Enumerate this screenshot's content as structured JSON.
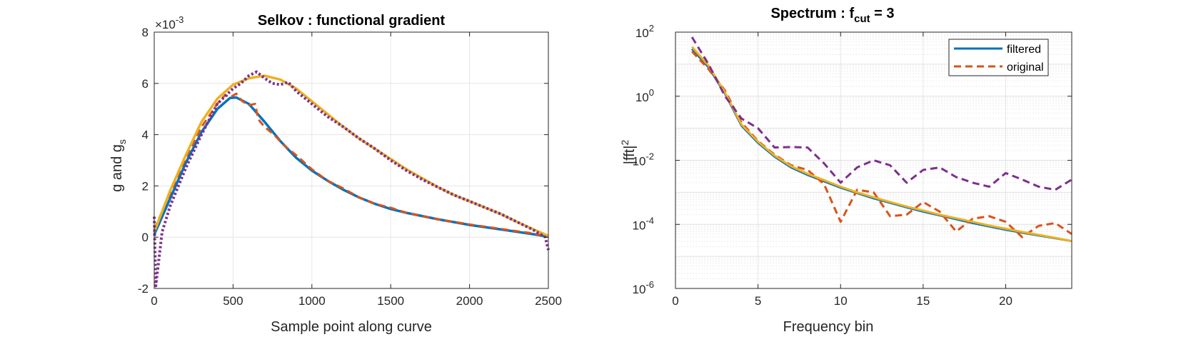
{
  "chart_data": [
    {
      "type": "line",
      "title": "Selkov : functional gradient",
      "xlabel": "Sample point along curve",
      "ylabel_main": "g and g",
      "ylabel_sub": "s",
      "y_exponent_prefix": "×10",
      "y_exponent": "-3",
      "xlim": [
        0,
        2500
      ],
      "ylim": [
        -2,
        8
      ],
      "xticks": [
        0,
        500,
        1000,
        1500,
        2000,
        2500
      ],
      "yticks": [
        -2,
        0,
        2,
        4,
        6,
        8
      ],
      "xtick_labels": [
        "0",
        "500",
        "1000",
        "1500",
        "2000",
        "2500"
      ],
      "ytick_labels": [
        "-2",
        "0",
        "2",
        "4",
        "6",
        "8"
      ],
      "grid": true,
      "series": [
        {
          "color": "#0072BD",
          "style": "solid",
          "points": [
            [
              0,
              0.1
            ],
            [
              100,
              1.5
            ],
            [
              200,
              2.9
            ],
            [
              300,
              4.1
            ],
            [
              400,
              5.0
            ],
            [
              480,
              5.43
            ],
            [
              520,
              5.45
            ],
            [
              600,
              5.2
            ],
            [
              700,
              4.5
            ],
            [
              800,
              3.75
            ],
            [
              900,
              3.1
            ],
            [
              1000,
              2.6
            ],
            [
              1100,
              2.2
            ],
            [
              1200,
              1.85
            ],
            [
              1300,
              1.55
            ],
            [
              1400,
              1.3
            ],
            [
              1500,
              1.1
            ],
            [
              1600,
              0.95
            ],
            [
              1800,
              0.7
            ],
            [
              2000,
              0.48
            ],
            [
              2200,
              0.3
            ],
            [
              2400,
              0.12
            ],
            [
              2500,
              0.02
            ]
          ]
        },
        {
          "color": "#D95319",
          "style": "dashed",
          "points": [
            [
              0,
              0.3
            ],
            [
              100,
              1.7
            ],
            [
              200,
              3.1
            ],
            [
              300,
              4.3
            ],
            [
              400,
              5.2
            ],
            [
              450,
              5.55
            ],
            [
              480,
              5.45
            ],
            [
              520,
              5.6
            ],
            [
              560,
              5.3
            ],
            [
              600,
              5.15
            ],
            [
              640,
              5.2
            ],
            [
              660,
              4.6
            ],
            [
              700,
              4.3
            ],
            [
              760,
              4.0
            ],
            [
              820,
              3.6
            ],
            [
              900,
              3.2
            ],
            [
              1000,
              2.65
            ],
            [
              1100,
              2.2
            ],
            [
              1200,
              1.9
            ],
            [
              1300,
              1.55
            ],
            [
              1400,
              1.3
            ],
            [
              1500,
              1.15
            ],
            [
              1600,
              0.95
            ],
            [
              1800,
              0.7
            ],
            [
              2000,
              0.5
            ],
            [
              2200,
              0.32
            ],
            [
              2400,
              0.15
            ],
            [
              2500,
              0.02
            ]
          ]
        },
        {
          "color": "#EDB120",
          "style": "solid",
          "points": [
            [
              0,
              0.2
            ],
            [
              100,
              1.8
            ],
            [
              200,
              3.2
            ],
            [
              300,
              4.5
            ],
            [
              400,
              5.4
            ],
            [
              500,
              5.95
            ],
            [
              600,
              6.2
            ],
            [
              700,
              6.3
            ],
            [
              800,
              6.15
            ],
            [
              900,
              5.8
            ],
            [
              1000,
              5.3
            ],
            [
              1100,
              4.8
            ],
            [
              1200,
              4.3
            ],
            [
              1300,
              3.85
            ],
            [
              1400,
              3.45
            ],
            [
              1500,
              3.05
            ],
            [
              1600,
              2.65
            ],
            [
              1700,
              2.3
            ],
            [
              1800,
              1.95
            ],
            [
              1900,
              1.65
            ],
            [
              2000,
              1.4
            ],
            [
              2100,
              1.15
            ],
            [
              2200,
              0.9
            ],
            [
              2300,
              0.6
            ],
            [
              2400,
              0.32
            ],
            [
              2500,
              0.05
            ]
          ]
        },
        {
          "color": "#7E2F8E",
          "style": "dotted",
          "points": [
            [
              0,
              0.8
            ],
            [
              10,
              -1.9
            ],
            [
              50,
              0.2
            ],
            [
              100,
              1.2
            ],
            [
              200,
              2.7
            ],
            [
              300,
              4.0
            ],
            [
              400,
              5.2
            ],
            [
              500,
              5.8
            ],
            [
              550,
              6.0
            ],
            [
              600,
              6.3
            ],
            [
              650,
              6.45
            ],
            [
              700,
              6.2
            ],
            [
              750,
              6.0
            ],
            [
              800,
              5.95
            ],
            [
              850,
              6.05
            ],
            [
              900,
              5.7
            ],
            [
              1000,
              5.2
            ],
            [
              1100,
              4.7
            ],
            [
              1200,
              4.3
            ],
            [
              1300,
              3.85
            ],
            [
              1400,
              3.45
            ],
            [
              1500,
              3.0
            ],
            [
              1600,
              2.6
            ],
            [
              1700,
              2.25
            ],
            [
              1800,
              1.95
            ],
            [
              1900,
              1.65
            ],
            [
              2000,
              1.4
            ],
            [
              2100,
              1.15
            ],
            [
              2200,
              0.9
            ],
            [
              2300,
              0.6
            ],
            [
              2400,
              0.3
            ],
            [
              2480,
              0.0
            ],
            [
              2500,
              -0.5
            ]
          ]
        }
      ]
    },
    {
      "type": "line",
      "title_main": "Spectrum : f",
      "title_sub": "cut",
      "title_tail": " = 3",
      "xlabel": "Frequency bin",
      "ylabel_main": "|fft|",
      "ylabel_sup": "2",
      "xlim": [
        0,
        24
      ],
      "ylim_log10": [
        -6,
        2
      ],
      "yscale": "log",
      "xticks": [
        0,
        5,
        10,
        15,
        20
      ],
      "xtick_labels": [
        "0",
        "5",
        "10",
        "15",
        "20"
      ],
      "ytick_base": "10",
      "ytick_exponents": [
        "-6",
        "-4",
        "-2",
        "0",
        "2"
      ],
      "grid": true,
      "legend_position": "top-right",
      "legend": [
        {
          "label": "filtered",
          "color": "#0072BD",
          "style": "solid"
        },
        {
          "label": "original",
          "color": "#D95319",
          "style": "dashed"
        }
      ],
      "series": [
        {
          "name": "filtered",
          "color": "#0072BD",
          "style": "solid",
          "points": [
            [
              1,
              30
            ],
            [
              2,
              8
            ],
            [
              3,
              1.2
            ],
            [
              4,
              0.12
            ],
            [
              5,
              0.035
            ],
            [
              6,
              0.013
            ],
            [
              7,
              0.006
            ],
            [
              8,
              0.0035
            ],
            [
              9,
              0.0022
            ],
            [
              10,
              0.0014
            ],
            [
              11,
              0.00095
            ],
            [
              12,
              0.00065
            ],
            [
              13,
              0.00047
            ],
            [
              14,
              0.00034
            ],
            [
              15,
              0.00025
            ],
            [
              16,
              0.00019
            ],
            [
              17,
              0.000145
            ],
            [
              18,
              0.00011
            ],
            [
              19,
              8.6e-05
            ],
            [
              20,
              6.8e-05
            ],
            [
              21,
              5.5e-05
            ],
            [
              22,
              4.5e-05
            ],
            [
              23,
              3.7e-05
            ],
            [
              24,
              3e-05
            ]
          ]
        },
        {
          "name": "original",
          "color": "#D95319",
          "style": "dashed",
          "points": [
            [
              1,
              25
            ],
            [
              2,
              7
            ],
            [
              3,
              1.5
            ],
            [
              4,
              0.15
            ],
            [
              5,
              0.04
            ],
            [
              6,
              0.015
            ],
            [
              7,
              0.007
            ],
            [
              8,
              0.005
            ],
            [
              9,
              0.0018
            ],
            [
              10,
              0.00012
            ],
            [
              11,
              0.0012
            ],
            [
              12,
              0.001
            ],
            [
              13,
              0.00018
            ],
            [
              14,
              0.0002
            ],
            [
              15,
              0.0005
            ],
            [
              16,
              0.00025
            ],
            [
              17,
              6e-05
            ],
            [
              18,
              0.00015
            ],
            [
              19,
              0.00018
            ],
            [
              20,
              0.00012
            ],
            [
              21,
              4e-05
            ],
            [
              22,
              9e-05
            ],
            [
              23,
              0.00011
            ],
            [
              24,
              5e-05
            ]
          ]
        },
        {
          "color": "#EDB120",
          "style": "solid",
          "points": [
            [
              1,
              35
            ],
            [
              2,
              9
            ],
            [
              3,
              1.3
            ],
            [
              4,
              0.13
            ],
            [
              5,
              0.038
            ],
            [
              6,
              0.014
            ],
            [
              7,
              0.0065
            ],
            [
              8,
              0.0038
            ],
            [
              9,
              0.0024
            ],
            [
              10,
              0.0015
            ],
            [
              11,
              0.001
            ],
            [
              12,
              0.0007
            ],
            [
              13,
              0.0005
            ],
            [
              14,
              0.00036
            ],
            [
              15,
              0.00027
            ],
            [
              16,
              0.0002
            ],
            [
              17,
              0.000155
            ],
            [
              18,
              0.00012
            ],
            [
              19,
              9.2e-05
            ],
            [
              20,
              7.3e-05
            ],
            [
              21,
              5.8e-05
            ],
            [
              22,
              4.7e-05
            ],
            [
              23,
              3.8e-05
            ],
            [
              24,
              3e-05
            ]
          ]
        },
        {
          "color": "#7E2F8E",
          "style": "dashed",
          "points": [
            [
              1,
              70
            ],
            [
              2,
              10
            ],
            [
              3,
              1.0
            ],
            [
              4,
              0.2
            ],
            [
              5,
              0.1
            ],
            [
              6,
              0.025
            ],
            [
              7,
              0.026
            ],
            [
              8,
              0.025
            ],
            [
              9,
              0.008
            ],
            [
              10,
              0.002
            ],
            [
              11,
              0.006
            ],
            [
              12,
              0.01
            ],
            [
              13,
              0.007
            ],
            [
              14,
              0.002
            ],
            [
              15,
              0.005
            ],
            [
              16,
              0.006
            ],
            [
              17,
              0.003
            ],
            [
              18,
              0.002
            ],
            [
              19,
              0.0015
            ],
            [
              20,
              0.004
            ],
            [
              21,
              0.0025
            ],
            [
              22,
              0.0015
            ],
            [
              23,
              0.0012
            ],
            [
              24,
              0.0025
            ]
          ]
        }
      ]
    }
  ]
}
